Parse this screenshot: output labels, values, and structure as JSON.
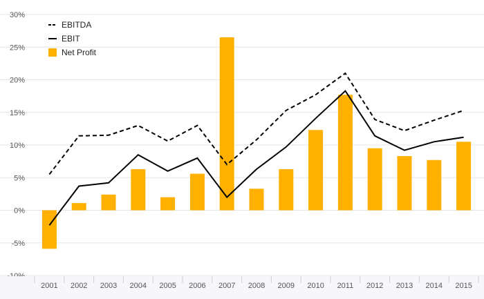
{
  "chart_data": {
    "type": "bar",
    "categories": [
      "2001",
      "2002",
      "2003",
      "2004",
      "2005",
      "2006",
      "2007",
      "2008",
      "2009",
      "2010",
      "2011",
      "2012",
      "2013",
      "2014",
      "2015"
    ],
    "ylim": [
      -10,
      30
    ],
    "yticks": [
      -10,
      -5,
      0,
      5,
      10,
      15,
      20,
      25,
      30
    ],
    "ytick_labels": [
      "-10%",
      "-5%",
      "0%",
      "5%",
      "10%",
      "15%",
      "20%",
      "25%",
      "30%"
    ],
    "grid": "horizontal",
    "legend_position": "top-left",
    "series": [
      {
        "name": "EBITDA",
        "kind": "line",
        "style": "dashed",
        "color": "#000000",
        "values": [
          5.5,
          11.4,
          11.5,
          13.0,
          10.6,
          13.0,
          7.0,
          10.8,
          15.3,
          17.7,
          21.0,
          13.9,
          12.2,
          13.8,
          15.3
        ]
      },
      {
        "name": "EBIT",
        "kind": "line",
        "style": "solid",
        "color": "#000000",
        "values": [
          -2.3,
          3.7,
          4.2,
          8.5,
          6.0,
          8.0,
          2.0,
          6.3,
          9.7,
          14.1,
          18.3,
          11.4,
          9.2,
          10.5,
          11.2
        ]
      },
      {
        "name": "Net Profit",
        "kind": "bar",
        "color": "#FFB000",
        "values": [
          -5.9,
          1.1,
          2.4,
          6.3,
          2.0,
          5.6,
          26.5,
          3.3,
          6.3,
          12.3,
          17.7,
          9.5,
          8.3,
          7.7,
          10.5
        ]
      }
    ]
  },
  "colors": {
    "background": "#ffffff",
    "plot_band": "#f6f6fb",
    "grid": "#e6e6e6",
    "axis_text": "#555555"
  }
}
